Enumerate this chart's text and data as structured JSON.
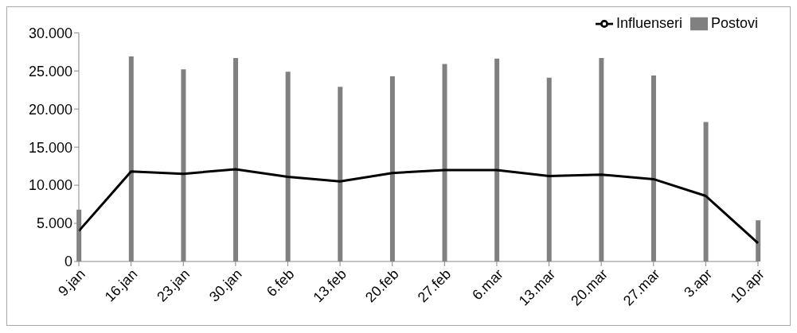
{
  "chart_data": {
    "type": "bar",
    "categories": [
      "9.jan",
      "16.jan",
      "23.jan",
      "30.jan",
      "6.feb",
      "13.feb",
      "20.feb",
      "27.feb",
      "6.mar",
      "13.mar",
      "20.mar",
      "27.mar",
      "3.apr",
      "10.apr"
    ],
    "series": [
      {
        "name": "Postovi",
        "color": "#808080",
        "values": [
          6800,
          26900,
          25200,
          26700,
          24900,
          22900,
          24300,
          25900,
          26600,
          24100,
          26700,
          24400,
          18300,
          5400
        ]
      },
      {
        "name": "Influenseri",
        "type": "line",
        "color": "#000000",
        "values": [
          4000,
          11800,
          11500,
          12100,
          11100,
          10500,
          11600,
          12000,
          12000,
          11200,
          11400,
          10800,
          8600,
          2400
        ]
      }
    ],
    "ylim": [
      0,
      30000
    ],
    "yticks": [
      0,
      {
        "value": 5000,
        "label": "5.000"
      },
      {
        "value": 10000,
        "label": "10.000"
      },
      {
        "value": 15000,
        "label": "15.000"
      },
      {
        "value": 20000,
        "label": "20.000"
      },
      {
        "value": 25000,
        "label": "25.000"
      },
      {
        "value": 30000,
        "label": "30.000"
      }
    ],
    "grid": false,
    "legend": "top right",
    "marker": "none",
    "line_style": "solid"
  }
}
